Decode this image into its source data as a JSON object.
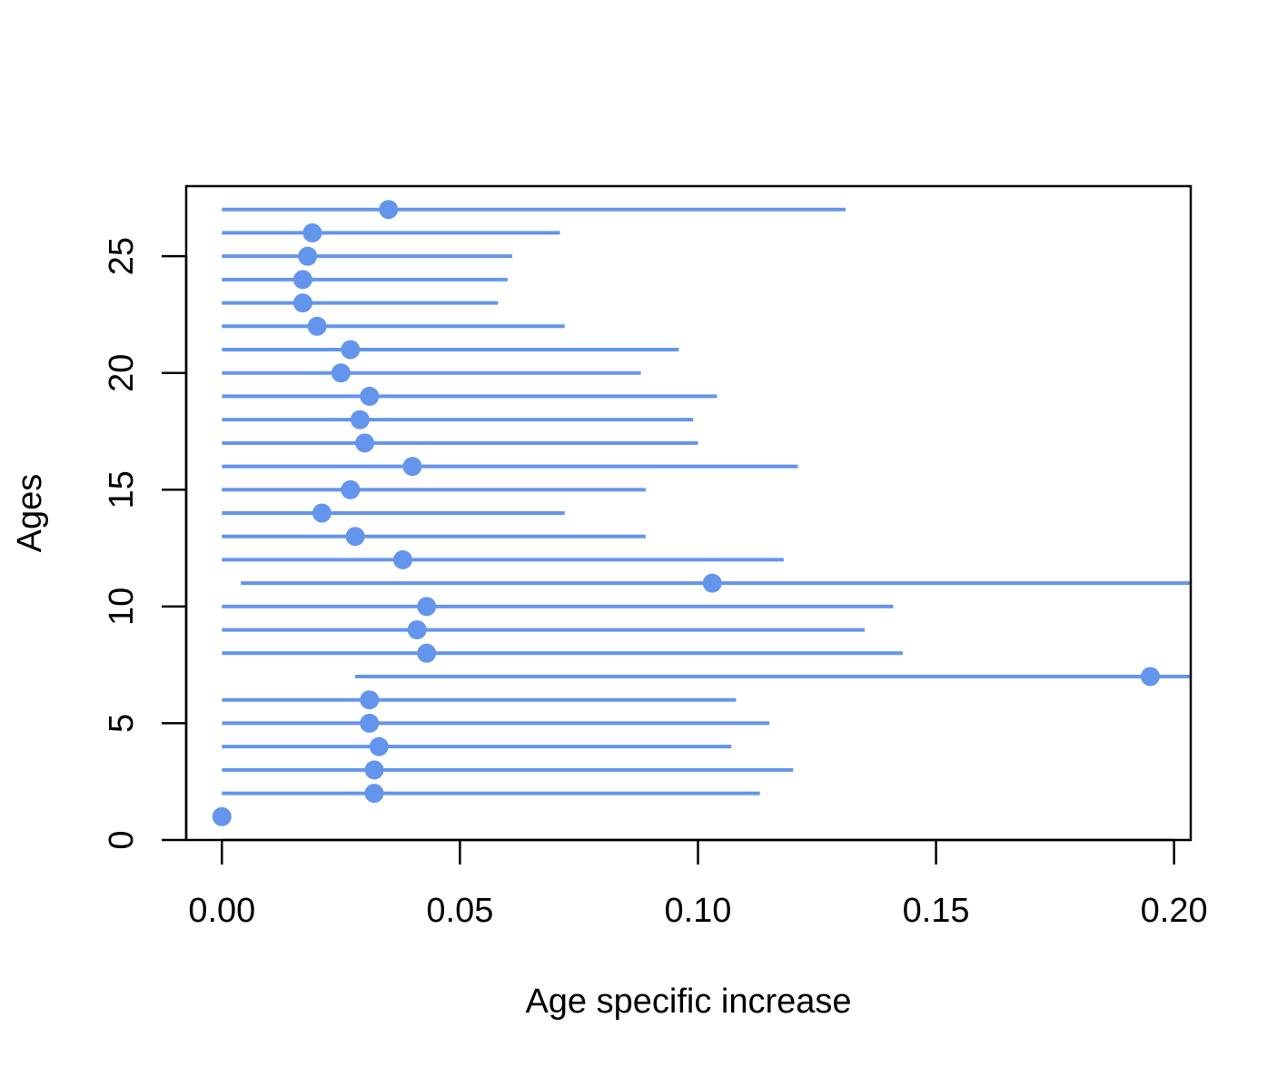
{
  "chart_data": {
    "type": "scatter",
    "title": "",
    "xlabel": "Age specific increase",
    "ylabel": "Ages",
    "xlim": [
      -0.0075,
      0.2035
    ],
    "ylim": [
      0,
      28
    ],
    "x_ticks": [
      0.0,
      0.05,
      0.1,
      0.15,
      0.2
    ],
    "x_tick_labels": [
      "0.00",
      "0.05",
      "0.10",
      "0.15",
      "0.20"
    ],
    "y_ticks": [
      0,
      5,
      10,
      15,
      20,
      25
    ],
    "y_tick_labels": [
      "0",
      "5",
      "10",
      "15",
      "20",
      "25"
    ],
    "grid": false,
    "series_color": "#6495ED",
    "points": [
      {
        "age": 1,
        "estimate": 0.0,
        "lower": null,
        "upper": null
      },
      {
        "age": 2,
        "estimate": 0.032,
        "lower": 0.0,
        "upper": 0.113
      },
      {
        "age": 3,
        "estimate": 0.032,
        "lower": 0.0,
        "upper": 0.12
      },
      {
        "age": 4,
        "estimate": 0.033,
        "lower": 0.0,
        "upper": 0.107
      },
      {
        "age": 5,
        "estimate": 0.031,
        "lower": 0.0,
        "upper": 0.115
      },
      {
        "age": 6,
        "estimate": 0.031,
        "lower": 0.0,
        "upper": 0.108
      },
      {
        "age": 7,
        "estimate": 0.195,
        "lower": 0.028,
        "upper": 0.2035
      },
      {
        "age": 8,
        "estimate": 0.043,
        "lower": 0.0,
        "upper": 0.143
      },
      {
        "age": 9,
        "estimate": 0.041,
        "lower": 0.0,
        "upper": 0.135
      },
      {
        "age": 10,
        "estimate": 0.043,
        "lower": 0.0,
        "upper": 0.141
      },
      {
        "age": 11,
        "estimate": 0.103,
        "lower": 0.004,
        "upper": 0.2035
      },
      {
        "age": 12,
        "estimate": 0.038,
        "lower": 0.0,
        "upper": 0.118
      },
      {
        "age": 13,
        "estimate": 0.028,
        "lower": 0.0,
        "upper": 0.089
      },
      {
        "age": 14,
        "estimate": 0.021,
        "lower": 0.0,
        "upper": 0.072
      },
      {
        "age": 15,
        "estimate": 0.027,
        "lower": 0.0,
        "upper": 0.089
      },
      {
        "age": 16,
        "estimate": 0.04,
        "lower": 0.0,
        "upper": 0.121
      },
      {
        "age": 17,
        "estimate": 0.03,
        "lower": 0.0,
        "upper": 0.1
      },
      {
        "age": 18,
        "estimate": 0.029,
        "lower": 0.0,
        "upper": 0.099
      },
      {
        "age": 19,
        "estimate": 0.031,
        "lower": 0.0,
        "upper": 0.104
      },
      {
        "age": 20,
        "estimate": 0.025,
        "lower": 0.0,
        "upper": 0.088
      },
      {
        "age": 21,
        "estimate": 0.027,
        "lower": 0.0,
        "upper": 0.096
      },
      {
        "age": 22,
        "estimate": 0.02,
        "lower": 0.0,
        "upper": 0.072
      },
      {
        "age": 23,
        "estimate": 0.017,
        "lower": 0.0,
        "upper": 0.058
      },
      {
        "age": 24,
        "estimate": 0.017,
        "lower": 0.0,
        "upper": 0.06
      },
      {
        "age": 25,
        "estimate": 0.018,
        "lower": 0.0,
        "upper": 0.061
      },
      {
        "age": 26,
        "estimate": 0.019,
        "lower": 0.0,
        "upper": 0.071
      },
      {
        "age": 27,
        "estimate": 0.035,
        "lower": 0.0,
        "upper": 0.131
      }
    ]
  }
}
